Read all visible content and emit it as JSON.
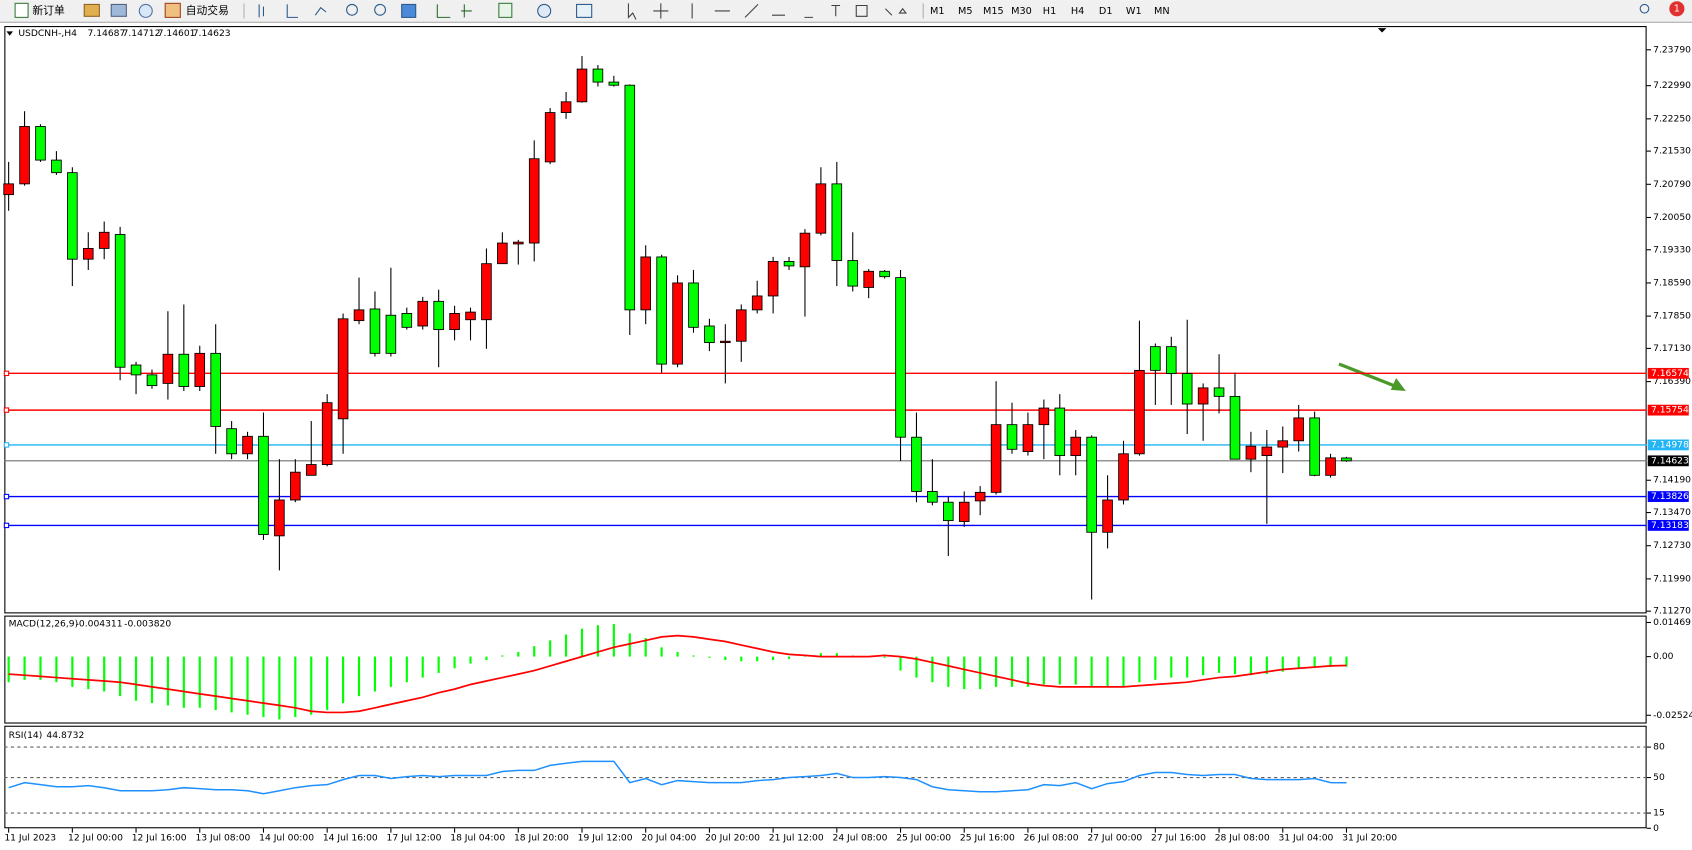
{
  "toolbar": {
    "new_order": "新订单",
    "auto_trading": "自动交易",
    "timeframes": [
      "M1",
      "M5",
      "M15",
      "M30",
      "H1",
      "H4",
      "D1",
      "W1",
      "MN"
    ],
    "badge": "1"
  },
  "chart_data": [
    {
      "type": "candlestick",
      "title": "USDCNH-,H4",
      "categories": [
        "11 Jul 2023",
        null,
        null,
        null,
        "12 Jul 00:00",
        null,
        null,
        null,
        "12 Jul 16:00",
        null,
        null,
        null,
        "13 Jul 08:00",
        null,
        null,
        null,
        "14 Jul 00:00",
        null,
        null,
        null,
        "14 Jul 16:00",
        null,
        null,
        null,
        "17 Jul 12:00",
        null,
        null,
        null,
        "18 Jul 04:00",
        null,
        null,
        null,
        "18 Jul 20:00",
        null,
        null,
        null,
        "19 Jul 12:00",
        null,
        null,
        null,
        "20 Jul 04:00",
        null,
        null,
        null,
        "20 Jul 20:00",
        null,
        null,
        null,
        "21 Jul 12:00",
        null,
        null,
        null,
        "24 Jul 08:00",
        null,
        null,
        null,
        "25 Jul 00:00",
        null,
        null,
        null,
        "25 Jul 16:00",
        null,
        null,
        null,
        "26 Jul 08:00",
        null,
        null,
        null,
        "27 Jul 00:00",
        null,
        null,
        null,
        "27 Jul 16:00",
        null,
        null,
        null,
        "28 Jul 08:00",
        null,
        null,
        null,
        "31 Jul 04:00",
        null,
        null,
        null,
        "31 Jul 20:00"
      ],
      "open": [
        7.2056,
        7.208,
        7.2208,
        7.2133,
        7.2105,
        7.1912,
        7.1936,
        7.1967,
        7.1676,
        7.1654,
        7.1635,
        7.17,
        7.1628,
        7.1702,
        7.1534,
        7.1478,
        7.1517,
        7.1295,
        7.1375,
        7.143,
        7.1454,
        7.1556,
        7.1775,
        7.1801,
        7.1787,
        7.1791,
        7.1763,
        7.1818,
        7.1755,
        7.1777,
        7.1777,
        7.1902,
        7.1946,
        7.1948,
        7.2129,
        7.2239,
        7.2263,
        7.2336,
        7.2307,
        7.23,
        7.1799,
        7.1917,
        7.1678,
        7.1859,
        7.1763,
        7.1726,
        7.1729,
        7.1799,
        7.183,
        7.1907,
        7.1895,
        7.197,
        7.208,
        7.1909,
        7.1849,
        7.1885,
        7.1871,
        7.1515,
        7.1394,
        7.137,
        7.1327,
        7.1373,
        7.1392,
        7.1543,
        7.1483,
        7.1543,
        7.158,
        7.1474,
        7.1515,
        7.1303,
        7.1375,
        7.1478,
        7.1717,
        7.1717,
        7.1657,
        7.1589,
        7.1625,
        7.1606,
        7.1466,
        7.1474,
        7.1493,
        7.1507,
        7.1558,
        7.143,
        7.14687
      ],
      "high": [
        7.2129,
        7.2242,
        7.2213,
        7.2153,
        7.2117,
        7.1972,
        7.1996,
        7.1984,
        7.1683,
        7.1666,
        7.1796,
        7.1811,
        7.1719,
        7.1767,
        7.1551,
        7.1527,
        7.157,
        7.1466,
        7.1466,
        7.1551,
        7.1611,
        7.1791,
        7.1871,
        7.184,
        7.1893,
        7.1804,
        7.1828,
        7.1844,
        7.1808,
        7.1804,
        7.1936,
        7.1972,
        7.1955,
        7.2177,
        7.2249,
        7.2285,
        7.2365,
        7.2345,
        7.2321,
        7.2302,
        7.1943,
        7.1922,
        7.1876,
        7.1888,
        7.1779,
        7.1767,
        7.1811,
        7.1864,
        7.1917,
        7.1917,
        7.1979,
        7.2117,
        7.2129,
        7.1972,
        7.189,
        7.1888,
        7.1888,
        7.157,
        7.1466,
        7.1382,
        7.1394,
        7.1406,
        7.164,
        7.1592,
        7.157,
        7.1599,
        7.1611,
        7.1531,
        7.1519,
        7.143,
        7.1507,
        7.1775,
        7.1724,
        7.1739,
        7.1777,
        7.1635,
        7.17,
        7.1659,
        7.1527,
        7.1531,
        7.1539,
        7.1587,
        7.1572,
        7.1478,
        7.14712
      ],
      "low": [
        7.202,
        7.2076,
        7.2129,
        7.21,
        7.1852,
        7.1888,
        7.1912,
        7.1642,
        7.1611,
        7.1623,
        7.1599,
        7.1618,
        7.1618,
        7.1478,
        7.1466,
        7.1466,
        7.1286,
        7.1218,
        7.137,
        7.143,
        7.145,
        7.1478,
        7.1767,
        7.1695,
        7.1695,
        7.1755,
        7.1755,
        7.1671,
        7.1731,
        7.1731,
        7.1712,
        7.1902,
        7.19,
        7.1907,
        7.2124,
        7.2225,
        7.2261,
        7.2297,
        7.2297,
        7.1743,
        7.1767,
        7.1659,
        7.1671,
        7.1748,
        7.1707,
        7.1635,
        7.1683,
        7.1791,
        7.1791,
        7.1888,
        7.1784,
        7.1965,
        7.1852,
        7.184,
        7.1825,
        7.1869,
        7.1462,
        7.137,
        7.1363,
        7.125,
        7.1315,
        7.1341,
        7.1387,
        7.1478,
        7.1474,
        7.1466,
        7.143,
        7.143,
        7.1153,
        7.1267,
        7.1365,
        7.1474,
        7.1587,
        7.1587,
        7.1522,
        7.1507,
        7.1568,
        7.1466,
        7.1437,
        7.1322,
        7.1435,
        7.1483,
        7.1428,
        7.1425,
        7.14601
      ],
      "close": [
        7.208,
        7.2208,
        7.2133,
        7.2105,
        7.1912,
        7.1936,
        7.1972,
        7.1671,
        7.1654,
        7.163,
        7.17,
        7.1628,
        7.1702,
        7.1539,
        7.1478,
        7.1517,
        7.1298,
        7.1375,
        7.1437,
        7.1454,
        7.1592,
        7.1779,
        7.1799,
        7.1702,
        7.1702,
        7.176,
        7.1818,
        7.1755,
        7.1791,
        7.1794,
        7.1902,
        7.1948,
        7.195,
        7.2136,
        7.2239,
        7.2263,
        7.2336,
        7.2307,
        7.23,
        7.1799,
        7.1917,
        7.1678,
        7.1859,
        7.176,
        7.1726,
        7.1729,
        7.1799,
        7.183,
        7.1907,
        7.1897,
        7.197,
        7.208,
        7.1909,
        7.1852,
        7.1885,
        7.1873,
        7.1515,
        7.1394,
        7.137,
        7.1329,
        7.137,
        7.1392,
        7.1543,
        7.1488,
        7.1543,
        7.158,
        7.1474,
        7.1515,
        7.1303,
        7.1375,
        7.1478,
        7.1664,
        7.1664,
        7.1657,
        7.1589,
        7.1625,
        7.1606,
        7.1466,
        7.1495,
        7.1493,
        7.1507,
        7.1558,
        7.143,
        7.1469,
        7.14623
      ],
      "up_color": "#ff0000",
      "down_color": "#00ff00",
      "ylim": [
        7.1122,
        7.2432
      ],
      "yticks": [
        {
          "value": 7.2379,
          "label": "7.23790"
        },
        {
          "value": 7.2299,
          "label": "7.22990"
        },
        {
          "value": 7.2225,
          "label": "7.22250"
        },
        {
          "value": 7.2153,
          "label": "7.21530"
        },
        {
          "value": 7.2079,
          "label": "7.20790"
        },
        {
          "value": 7.2005,
          "label": "7.20050"
        },
        {
          "value": 7.1933,
          "label": "7.19330"
        },
        {
          "value": 7.1859,
          "label": "7.18590"
        },
        {
          "value": 7.1785,
          "label": "7.17850"
        },
        {
          "value": 7.1713,
          "label": "7.17130"
        },
        {
          "value": 7.1639,
          "label": "7.16390"
        },
        {
          "value": 7.1419,
          "label": "7.14190"
        },
        {
          "value": 7.1347,
          "label": "7.13470"
        },
        {
          "value": 7.1273,
          "label": "7.12730"
        },
        {
          "value": 7.1199,
          "label": "7.11990"
        },
        {
          "value": 7.1127,
          "label": "7.11270"
        }
      ],
      "hlines": [
        {
          "value": 7.16574,
          "color": "#ff0000"
        },
        {
          "value": 7.15754,
          "color": "#ff0000"
        },
        {
          "value": 7.14978,
          "color": "#22b4f5"
        },
        {
          "value": 7.13826,
          "color": "#0000ff"
        },
        {
          "value": 7.13183,
          "color": "#0000ff"
        }
      ]
    },
    {
      "type": "macd",
      "title": "MACD(12,26,9)",
      "readouts": [
        "-0.004311",
        "-0.003820"
      ],
      "histogram": [
        -0.011,
        -0.01,
        -0.01,
        -0.011,
        -0.013,
        -0.014,
        -0.015,
        -0.017,
        -0.019,
        -0.02,
        -0.021,
        -0.022,
        -0.022,
        -0.023,
        -0.024,
        -0.025,
        -0.026,
        -0.027,
        -0.026,
        -0.025,
        -0.023,
        -0.02,
        -0.017,
        -0.015,
        -0.013,
        -0.011,
        -0.009,
        -0.007,
        -0.005,
        -0.003,
        -0.0015,
        0.0005,
        0.002,
        0.0045,
        0.007,
        0.0095,
        0.012,
        0.0135,
        0.014,
        0.01,
        0.008,
        0.004,
        0.002,
        0.0005,
        -0.0005,
        -0.0015,
        -0.002,
        -0.002,
        -0.0015,
        -0.001,
        0.0005,
        0.0015,
        0.0015,
        0.0005,
        0,
        -0.0005,
        -0.006,
        -0.009,
        -0.011,
        -0.013,
        -0.014,
        -0.014,
        -0.013,
        -0.013,
        -0.013,
        -0.012,
        -0.012,
        -0.012,
        -0.013,
        -0.013,
        -0.013,
        -0.011,
        -0.01,
        -0.009,
        -0.009,
        -0.008,
        -0.007,
        -0.0075,
        -0.008,
        -0.0075,
        -0.0065,
        -0.005,
        -0.0045,
        -0.0045,
        -0.004311
      ],
      "signal": [
        -0.0075,
        -0.008,
        -0.0085,
        -0.009,
        -0.0095,
        -0.01,
        -0.0105,
        -0.011,
        -0.012,
        -0.013,
        -0.014,
        -0.015,
        -0.016,
        -0.017,
        -0.018,
        -0.019,
        -0.02,
        -0.021,
        -0.022,
        -0.0235,
        -0.024,
        -0.024,
        -0.0235,
        -0.022,
        -0.0205,
        -0.019,
        -0.0175,
        -0.0155,
        -0.014,
        -0.012,
        -0.0105,
        -0.009,
        -0.0075,
        -0.006,
        -0.004,
        -0.002,
        0,
        0.002,
        0.004,
        0.0055,
        0.007,
        0.0085,
        0.009,
        0.0085,
        0.0075,
        0.0065,
        0.005,
        0.0035,
        0.002,
        0.001,
        0.0005,
        0,
        0,
        0,
        0,
        0.0005,
        0,
        -0.001,
        -0.0025,
        -0.004,
        -0.0055,
        -0.007,
        -0.0085,
        -0.01,
        -0.0115,
        -0.0125,
        -0.013,
        -0.013,
        -0.013,
        -0.013,
        -0.013,
        -0.0125,
        -0.012,
        -0.0115,
        -0.011,
        -0.01,
        -0.009,
        -0.0085,
        -0.0075,
        -0.0065,
        -0.0055,
        -0.005,
        -0.0045,
        -0.004,
        -0.00382
      ],
      "histogram_color": "#00ff00",
      "signal_color": "#ff0000",
      "ylim": [
        -0.0288,
        0.0172
      ],
      "yticks": [
        0.014691,
        {
          "value": 0,
          "label": "0.00"
        },
        -0.02524
      ]
    },
    {
      "type": "rsi",
      "title": "RSI(14)",
      "values": [
        40,
        45,
        43,
        41,
        41,
        42,
        40,
        37,
        37,
        37,
        38,
        40,
        39,
        38,
        38,
        37,
        34,
        37,
        40,
        42,
        43,
        48,
        52,
        52,
        49,
        51,
        52,
        51,
        52,
        52,
        52,
        56,
        57,
        57,
        62,
        64,
        66,
        66,
        66,
        45,
        49,
        43,
        47,
        46,
        45,
        45,
        45,
        47,
        48,
        50,
        51,
        52,
        54,
        50,
        50,
        51,
        50,
        48,
        41,
        38,
        37,
        36,
        36,
        37,
        38,
        43,
        42,
        45,
        39,
        44,
        46,
        52,
        55,
        55,
        53,
        52,
        53,
        53,
        49,
        48,
        48,
        48,
        49,
        45,
        44.8732
      ],
      "color": "#1e90ff",
      "ylim": [
        0,
        100
      ],
      "yticks": [
        80,
        50,
        15,
        0
      ],
      "levels": [
        80,
        50,
        15
      ]
    }
  ]
}
